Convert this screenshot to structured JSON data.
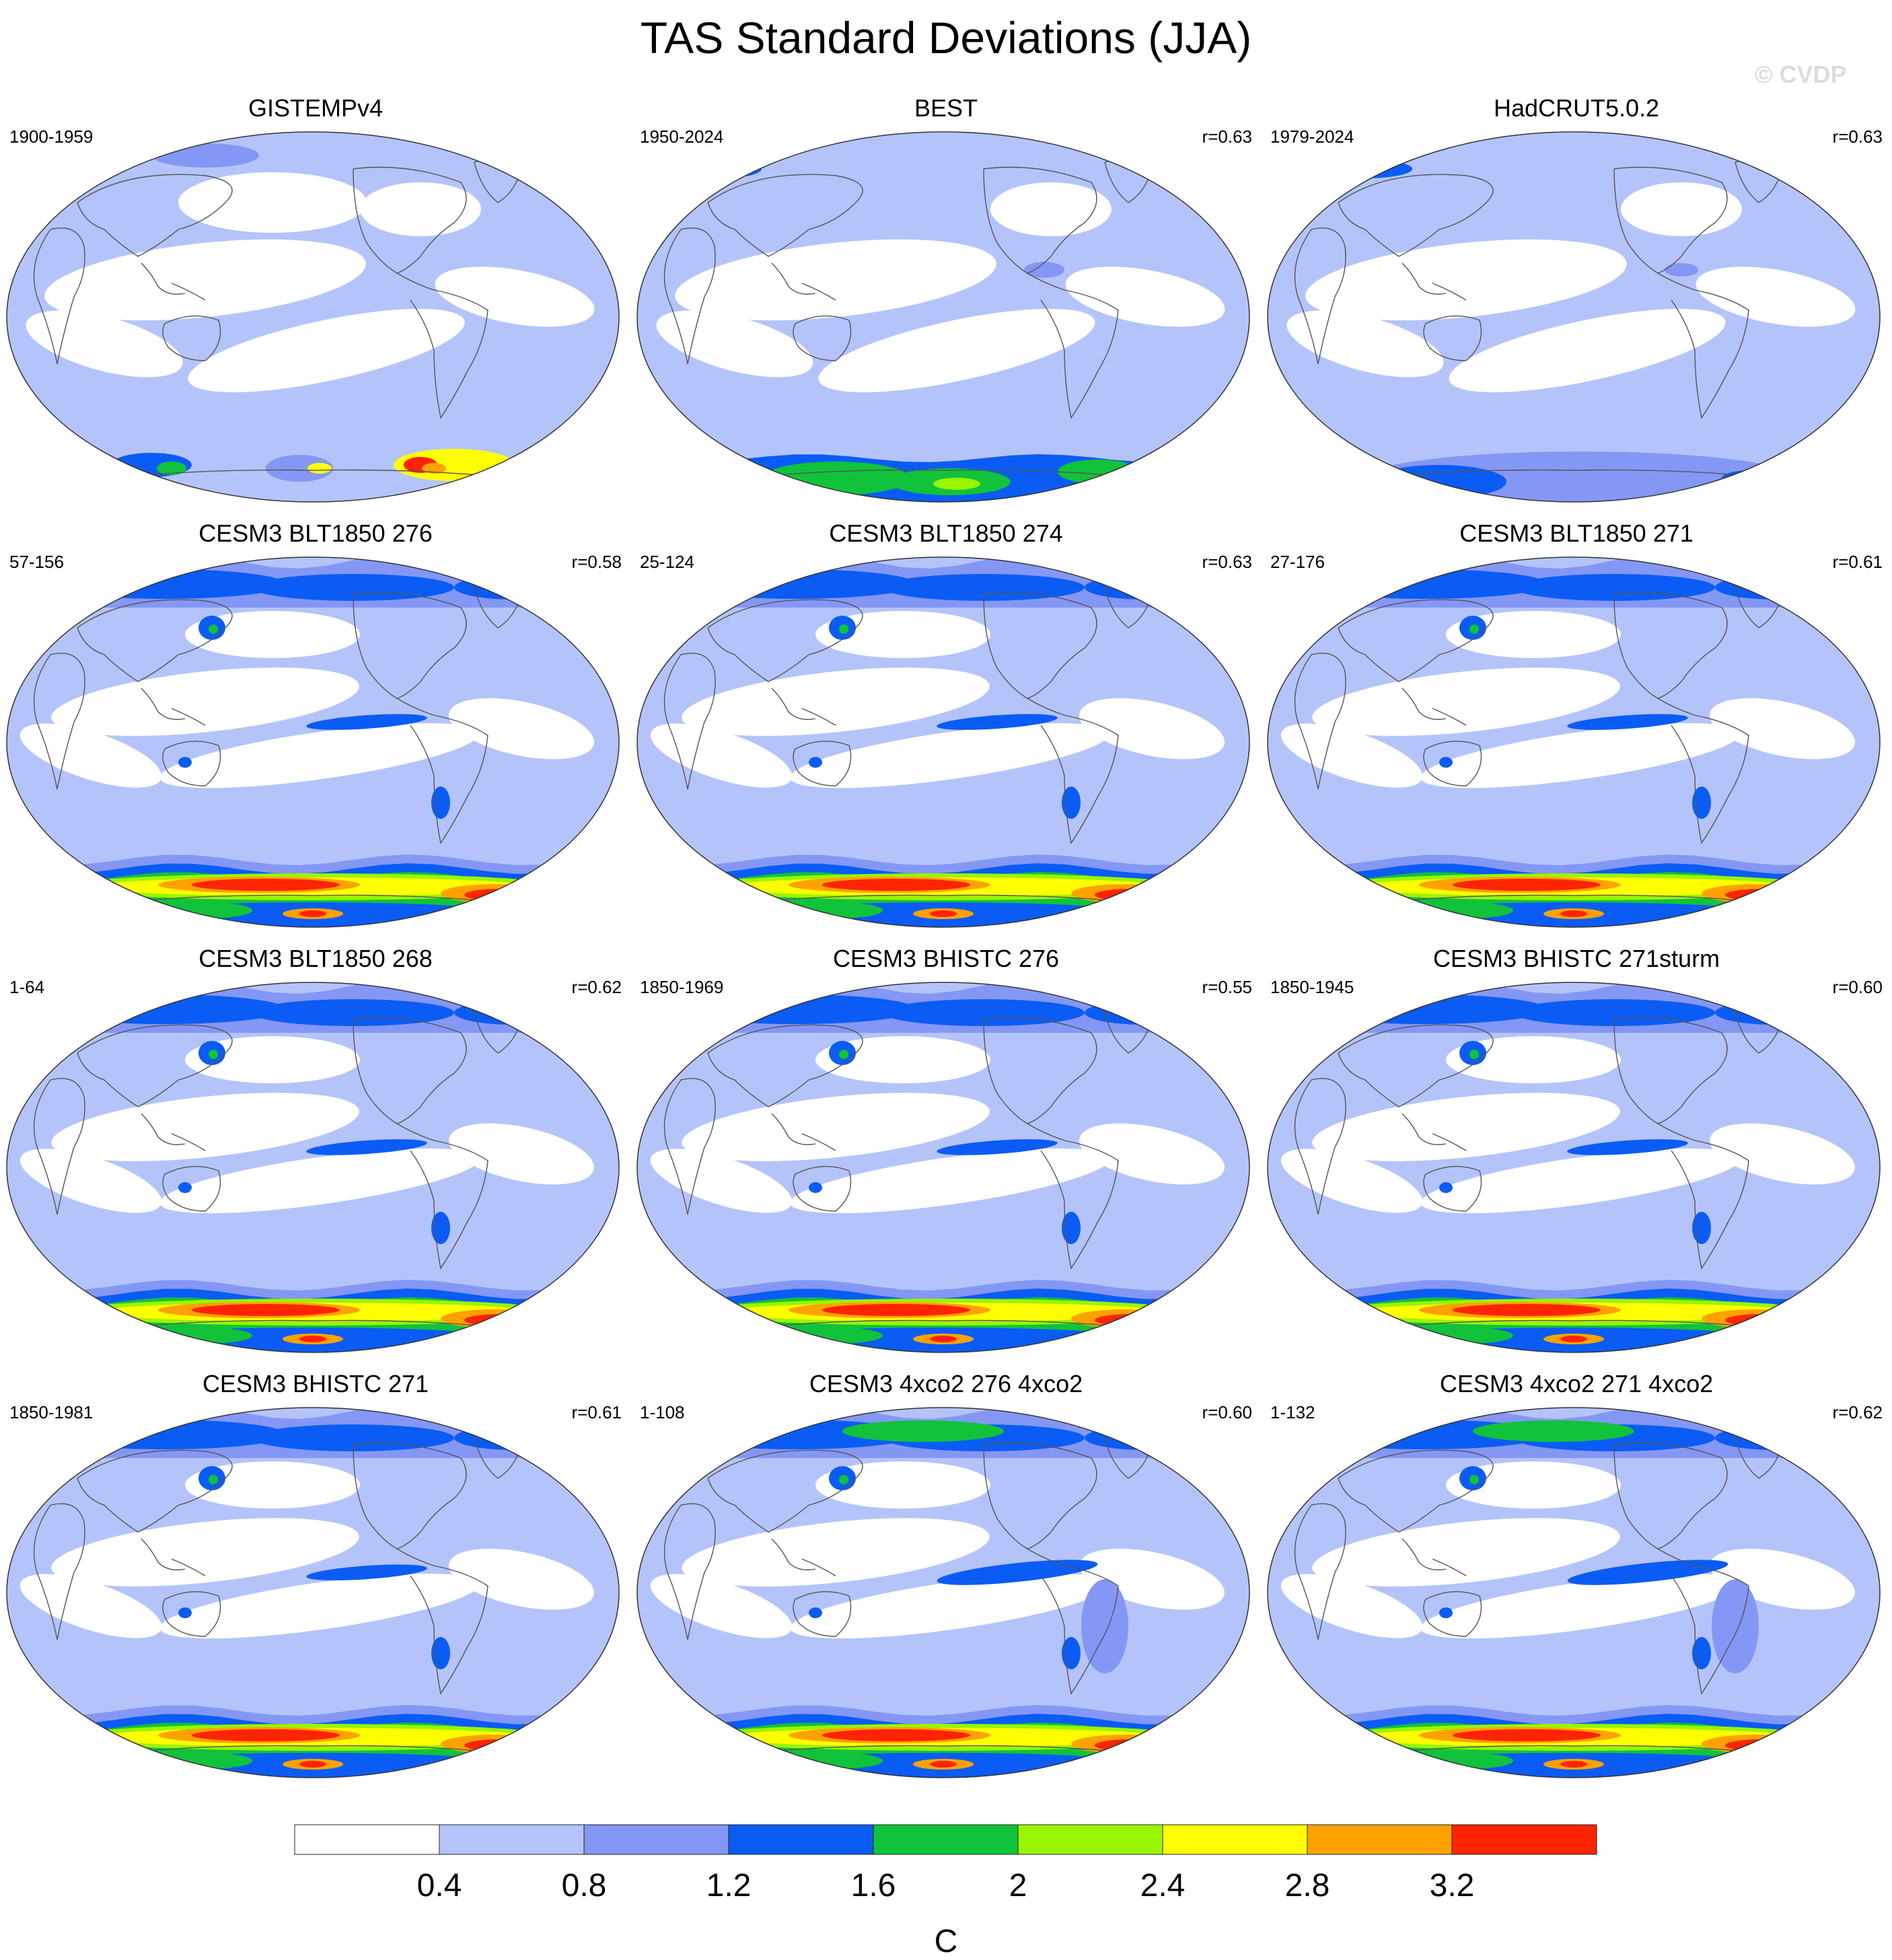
{
  "title": "TAS Standard Deviations (JJA)",
  "watermark": "© CVDP",
  "panels": [
    {
      "title": "GISTEMPv4",
      "period": "1900-1959",
      "corr": "",
      "pattern": "obs_gistemp"
    },
    {
      "title": "BEST",
      "period": "1950-2024",
      "corr": "r=0.63",
      "pattern": "obs_best"
    },
    {
      "title": "HadCRUT5.0.2",
      "period": "1979-2024",
      "corr": "r=0.63",
      "pattern": "obs_hadcrut"
    },
    {
      "title": "CESM3 BLT1850 276",
      "period": "57-156",
      "corr": "r=0.58",
      "pattern": "model"
    },
    {
      "title": "CESM3 BLT1850 274",
      "period": "25-124",
      "corr": "r=0.63",
      "pattern": "model"
    },
    {
      "title": "CESM3 BLT1850 271",
      "period": "27-176",
      "corr": "r=0.61",
      "pattern": "model"
    },
    {
      "title": "CESM3 BLT1850 268",
      "period": "1-64",
      "corr": "r=0.62",
      "pattern": "model"
    },
    {
      "title": "CESM3 BHISTC 276",
      "period": "1850-1969",
      "corr": "r=0.55",
      "pattern": "model"
    },
    {
      "title": "CESM3 BHISTC 271sturm",
      "period": "1850-1945",
      "corr": "r=0.60",
      "pattern": "model"
    },
    {
      "title": "CESM3 BHISTC 271",
      "period": "1850-1981",
      "corr": "r=0.61",
      "pattern": "model"
    },
    {
      "title": "CESM3 4xco2 276 4xco2",
      "period": "1-108",
      "corr": "r=0.60",
      "pattern": "model_4x"
    },
    {
      "title": "CESM3 4xco2 271 4xco2",
      "period": "1-132",
      "corr": "r=0.62",
      "pattern": "model_4x"
    }
  ],
  "colorbar": {
    "unit": "C",
    "tick_labels": [
      "0.4",
      "0.8",
      "1.2",
      "1.6",
      "2",
      "2.4",
      "2.8",
      "3.2"
    ],
    "colors": [
      "#ffffff",
      "#b4c4fa",
      "#8597f5",
      "#0a5cf5",
      "#10c33a",
      "#99f500",
      "#ffff00",
      "#ffa200",
      "#ff2400"
    ]
  }
}
